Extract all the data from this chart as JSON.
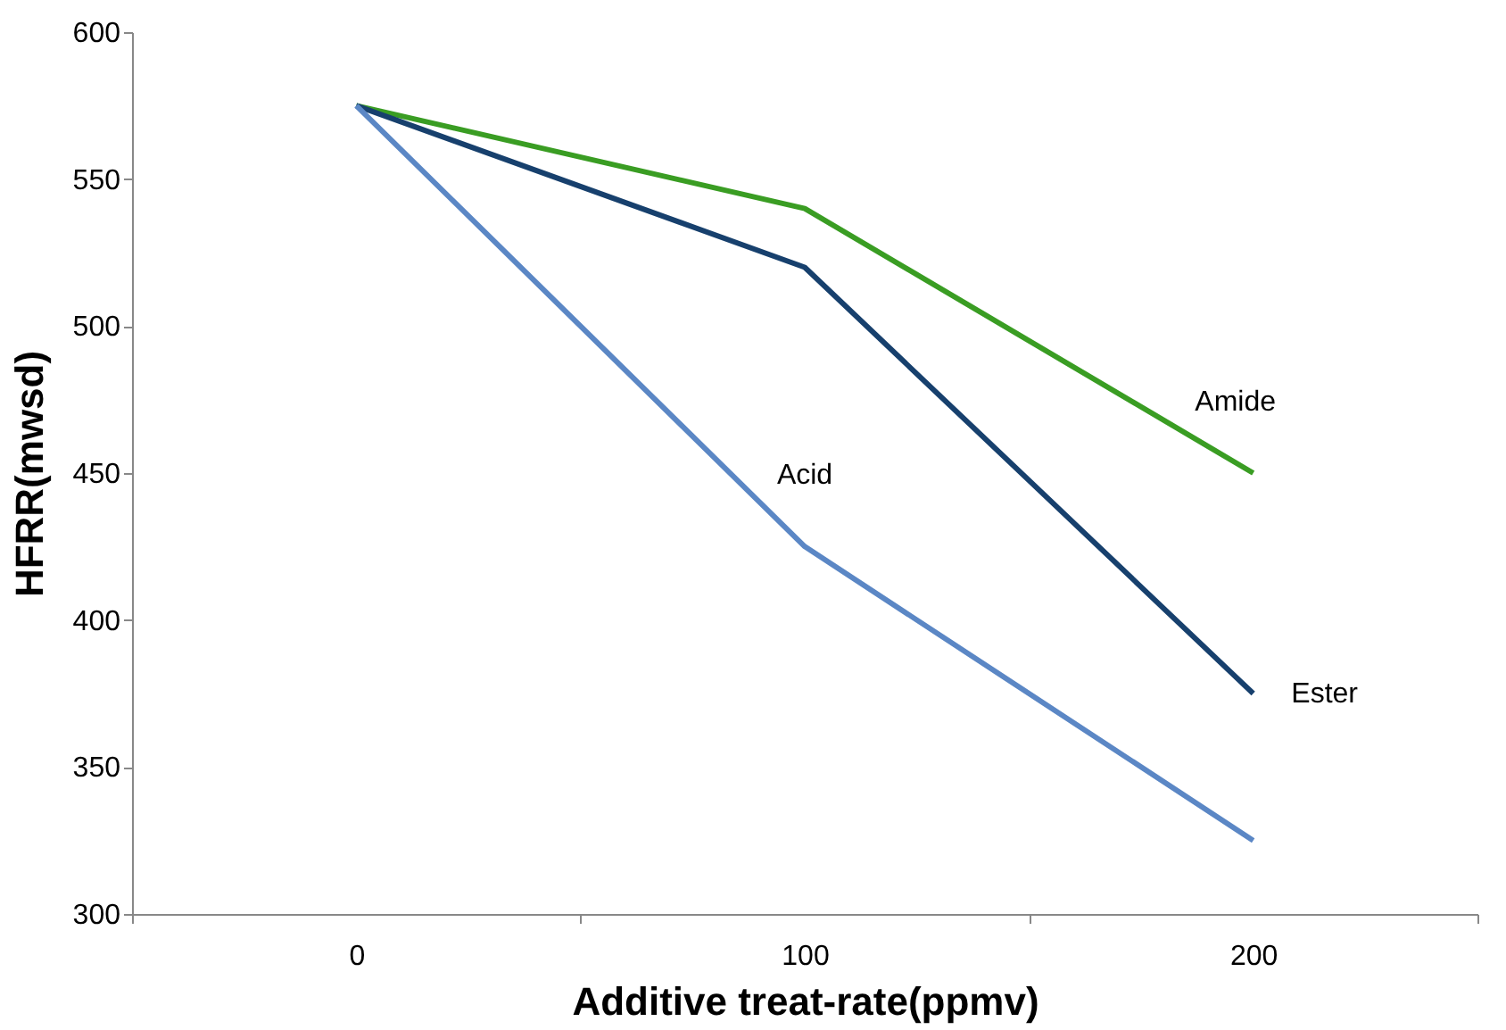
{
  "chart_data": {
    "type": "line",
    "xlabel": "Additive treat-rate(ppmv)",
    "ylabel": "HFRR(mwsd)",
    "categories": [
      "0",
      "100",
      "200"
    ],
    "ylim": [
      300,
      600
    ],
    "yticks": [
      300,
      350,
      400,
      450,
      500,
      550,
      600
    ],
    "grid": false,
    "marker": "none",
    "line_style": "solid",
    "series": [
      {
        "name": "Amide",
        "color": "#3a9d23",
        "values": [
          575,
          540,
          450
        ]
      },
      {
        "name": "Ester",
        "color": "#17406d",
        "values": [
          575,
          520,
          375
        ]
      },
      {
        "name": "Acid",
        "color": "#5b87c5",
        "values": [
          575,
          425,
          325
        ]
      }
    ]
  }
}
